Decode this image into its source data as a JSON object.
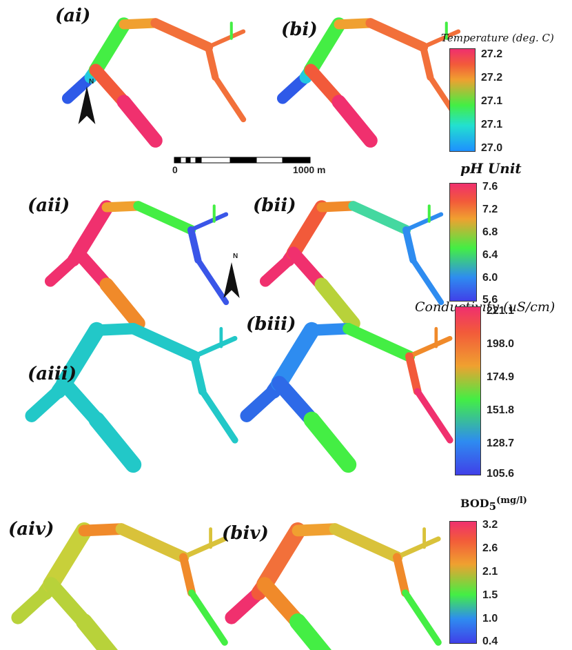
{
  "panels": [
    {
      "label": "(ai)"
    },
    {
      "label": "(bi)"
    },
    {
      "label": "(aii)"
    },
    {
      "label": "(bii)"
    },
    {
      "label": "(aiii)"
    },
    {
      "label": "(biii)"
    },
    {
      "label": "(aiv)"
    },
    {
      "label": "(biv)"
    }
  ],
  "colorbars": [
    {
      "title": "Temperature (deg. C)",
      "ticks": [
        "27.2",
        "27.2",
        "27.1",
        "27.1",
        "27.0"
      ]
    },
    {
      "title": "pH Unit",
      "ticks": [
        "7.6",
        "7.2",
        "6.8",
        "6.4",
        "6.0",
        "5.6"
      ]
    },
    {
      "title": "Conductivity (uS/cm)",
      "ticks": [
        "221.1",
        "198.0",
        "174.9",
        "151.8",
        "128.7",
        "105.6"
      ]
    },
    {
      "title": "BOD",
      "title_sub": "5",
      "title_unit": "(mg/l)",
      "ticks": [
        "3.2",
        "2.6",
        "2.1",
        "1.5",
        "1.0",
        "0.4"
      ]
    }
  ],
  "scale_bar": {
    "start_label": "0",
    "end_label": "1000 m"
  },
  "north": {
    "label": "N"
  },
  "colors": {
    "blue": "#3a56e8",
    "cyan": "#22c8c8",
    "green": "#44e84a",
    "yellow_green": "#b8d23a",
    "yellow": "#d9c23a",
    "orange": "#f08a2a",
    "red": "#f24a3a",
    "pink": "#f0306e",
    "magenta": "#e8207a"
  }
}
